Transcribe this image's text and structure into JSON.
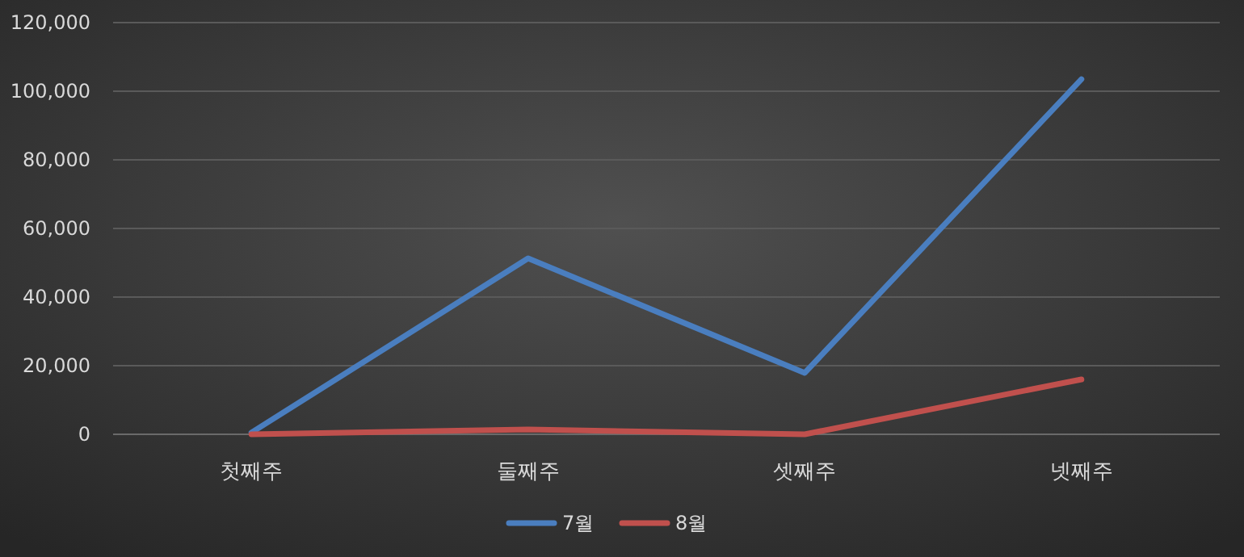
{
  "chart_data": {
    "type": "line",
    "categories": [
      "첫째주",
      "둘째주",
      "셋째주",
      "넷째주"
    ],
    "series": [
      {
        "name": "7월",
        "color": "#4a7ebf",
        "values": [
          500,
          51300,
          17900,
          103500
        ]
      },
      {
        "name": "8월",
        "color": "#c0504d",
        "values": [
          0,
          1400,
          0,
          16000
        ]
      }
    ],
    "ylim": [
      0,
      120000
    ],
    "yticks": [
      {
        "value": 0,
        "label": "0"
      },
      {
        "value": 20000,
        "label": "20,000"
      },
      {
        "value": 40000,
        "label": "40,000"
      },
      {
        "value": 60000,
        "label": "60,000"
      },
      {
        "value": 80000,
        "label": "80,000"
      },
      {
        "value": 100000,
        "label": "100,000"
      },
      {
        "value": 120000,
        "label": "120,000"
      }
    ],
    "grid": "y",
    "legend": "bottom",
    "marker": "none",
    "line_style": "solid"
  }
}
